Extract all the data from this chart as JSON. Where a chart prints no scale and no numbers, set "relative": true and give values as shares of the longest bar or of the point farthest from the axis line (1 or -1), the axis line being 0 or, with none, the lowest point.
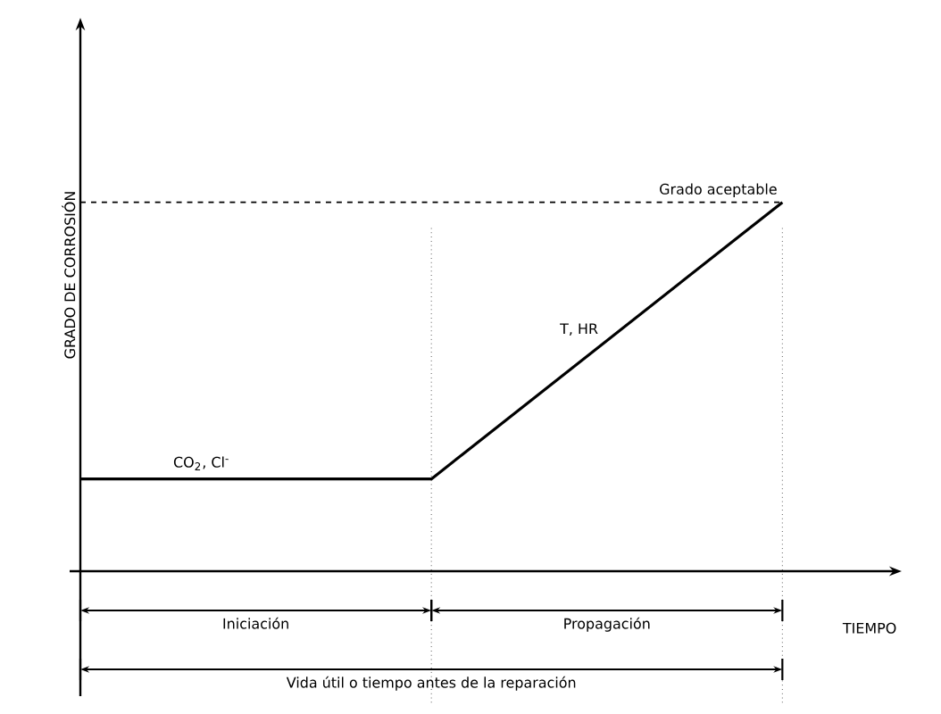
{
  "chart_data": {
    "type": "line",
    "relative": true,
    "xlabel": "TIEMPO",
    "ylabel": "GRADO DE CORROSIÓN",
    "categories": [
      null,
      null,
      null
    ],
    "series": [
      {
        "color": "#000000",
        "values": [
          0.25,
          0.25,
          1
        ]
      }
    ],
    "ref_lines": [
      {
        "axis": "y",
        "value": 1,
        "label": "Grado aceptable",
        "line_style": "dashed"
      }
    ],
    "annotations": [
      "CO$_{2}$, Cl$^{-}$",
      "T, HR",
      "Iniciación",
      "Propagación",
      "Vida útil o tiempo antes de la reparación"
    ]
  }
}
